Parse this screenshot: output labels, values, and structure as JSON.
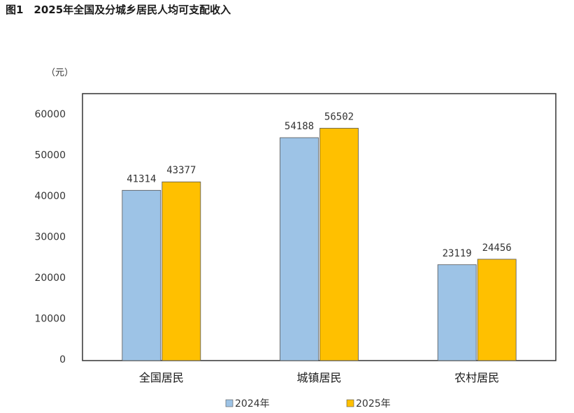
{
  "figure": {
    "title": "图1　2025年全国及分城乡居民人均可支配收入"
  },
  "chart_data": {
    "type": "bar",
    "title": "图1　2025年全国及分城乡居民人均可支配收入",
    "unit_label": "（元）",
    "categories": [
      "全国居民",
      "城镇居民",
      "农村居民"
    ],
    "series": [
      {
        "name": "2024年",
        "values": [
          41314,
          54188,
          23119
        ],
        "color": "#9DC3E6"
      },
      {
        "name": "2025年",
        "values": [
          43377,
          56502,
          24456
        ],
        "color": "#FFC000"
      }
    ],
    "ylim": [
      0,
      60000
    ],
    "yticks": [
      0,
      10000,
      20000,
      30000,
      40000,
      50000,
      60000
    ],
    "grid": false,
    "legend_position": "bottom",
    "xlabel": "",
    "ylabel": ""
  }
}
